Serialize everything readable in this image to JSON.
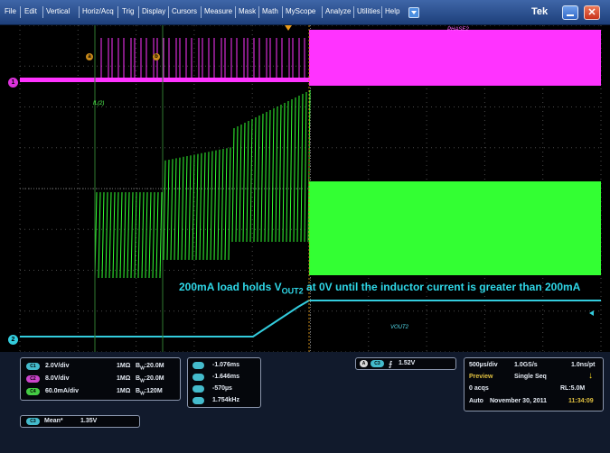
{
  "menu": {
    "items": [
      "File",
      "Edit",
      "Vertical",
      "Horiz/Acq",
      "Trig",
      "Display",
      "Cursors",
      "Measure",
      "Mask",
      "Math",
      "MyScope",
      "Analyze",
      "Utilities",
      "Help"
    ],
    "brand": "Tek"
  },
  "colors": {
    "ch1": "#ff33ff",
    "ch2": "#33ff33",
    "ch3": "#33ccdd",
    "background": "#000000",
    "grid": "#4a4a4a",
    "panel": "#111a2c"
  },
  "waveforms": {
    "phase_label": "PHASE2",
    "il_label": "IL(2)",
    "vout_label": "VOUT2",
    "ch1_marker": "1",
    "ch3_marker": "2",
    "cursor_a": "a",
    "cursor_b": "b",
    "annotation_prefix": "200mA load holds V",
    "annotation_sub": "OUT2",
    "annotation_suffix": " at 0V until the inductor current is greater than 200mA"
  },
  "channels": [
    {
      "badge": "C1",
      "color": "#cc44cc",
      "scale": "2.0V/div",
      "coupling": "1MΩ",
      "bw": "20.0M",
      "bw_prefix": "B",
      "bw_sub": "W"
    },
    {
      "badge": "C2",
      "color": "#cc44cc",
      "scale": "8.0V/div",
      "coupling": "1MΩ",
      "bw": "20.0M",
      "bw_prefix": "B",
      "bw_sub": "W"
    },
    {
      "badge": "C4",
      "color": "#44cc44",
      "scale": "60.0mA/div",
      "coupling": "1MΩ",
      "bw": "120M",
      "bw_prefix": "B",
      "bw_sub": "W"
    }
  ],
  "cursors": {
    "values": [
      "-1.076ms",
      "-1.646ms",
      "-570µs",
      "1.754kHz"
    ]
  },
  "trigger": {
    "source_badge": "A",
    "channel_badge": "C3",
    "level": "1.52V"
  },
  "measurement": {
    "badge": "C3",
    "label": "Mean*",
    "value": "1.35V"
  },
  "acquisition": {
    "timebase": "500µs/div",
    "sample_rate": "1.0GS/s",
    "resolution": "1.0ns/pt",
    "mode": "Preview",
    "sequence": "Single Seq",
    "acqs": "0 acqs",
    "record_length": "RL:5.0M",
    "auto": "Auto",
    "date": "November 30, 2011",
    "time": "11:34:09"
  }
}
